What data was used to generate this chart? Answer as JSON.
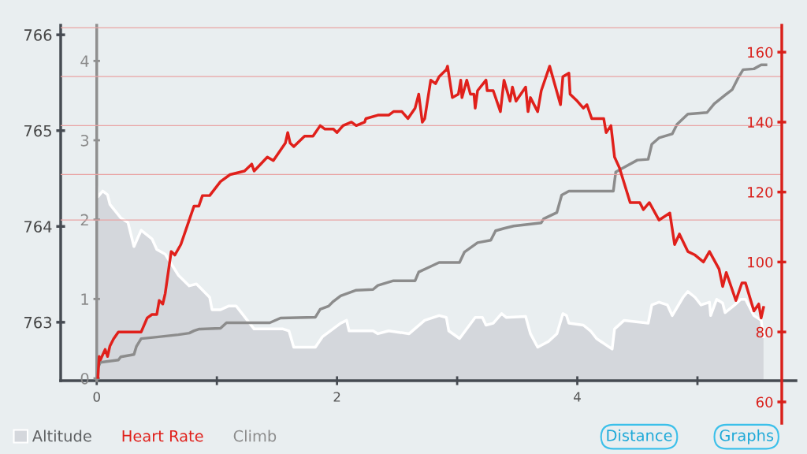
{
  "chart_data": {
    "type": "line",
    "xlim": [
      -0.3,
      5.82
    ],
    "xticks": [
      0,
      {
        "value": 1,
        "label": null
      },
      2,
      {
        "value": 3,
        "label": null
      },
      4,
      {
        "value": 5,
        "label": null
      }
    ],
    "ylim": [
      762.39,
      766.1
    ],
    "yticks": [
      763,
      764,
      765,
      766
    ],
    "y2lim": [
      53.9,
      167.7
    ],
    "y2ticks": [
      60,
      80,
      100,
      120,
      140,
      160
    ],
    "y3lim": [
      -0.03,
      4.45
    ],
    "y3ticks": [
      0,
      1,
      2,
      3,
      4
    ],
    "legend": "bottom left",
    "ref_lines": [
      {
        "axis": "y2",
        "value": 167,
        "color": "#e9a3a3"
      },
      {
        "axis": "y2",
        "value": 153,
        "color": "#e9a3a3"
      },
      {
        "axis": "y2",
        "value": 139,
        "color": "#e9a3a3"
      },
      {
        "axis": "y2",
        "value": 125,
        "color": "#e9a3a3"
      },
      {
        "axis": "y2",
        "value": 112,
        "color": "#e9a3a3"
      }
    ],
    "annotations": [
      "Distance",
      "Graphs"
    ],
    "series": [
      {
        "name": "Altitude",
        "type": "area",
        "axis": "y",
        "color": "#d4d7dc",
        "x": [
          0.0,
          0.01,
          0.05,
          0.09,
          0.11,
          0.2,
          0.26,
          0.31,
          0.37,
          0.46,
          0.5,
          0.57,
          0.68,
          0.77,
          0.83,
          0.94,
          0.96,
          1.03,
          1.1,
          1.16,
          1.31,
          1.55,
          1.6,
          1.64,
          1.82,
          1.88,
          2.03,
          2.08,
          2.1,
          2.3,
          2.34,
          2.43,
          2.6,
          2.73,
          2.85,
          2.91,
          2.93,
          3.02,
          3.15,
          3.21,
          3.24,
          3.3,
          3.37,
          3.41,
          3.57,
          3.61,
          3.67,
          3.76,
          3.83,
          3.88,
          3.91,
          3.93,
          4.05,
          4.11,
          4.16,
          4.29,
          4.31,
          4.39,
          4.59,
          4.62,
          4.68,
          4.75,
          4.79,
          4.88,
          4.92,
          4.98,
          5.03,
          5.1,
          5.11,
          5.16,
          5.21,
          5.23,
          5.31,
          5.36,
          5.4,
          5.47,
          5.53,
          5.55
        ],
        "values": [
          764.41,
          764.31,
          764.37,
          764.33,
          764.23,
          764.09,
          764.04,
          763.79,
          763.96,
          763.87,
          763.76,
          763.71,
          763.49,
          763.38,
          763.4,
          763.26,
          763.13,
          763.13,
          763.17,
          763.17,
          762.93,
          762.93,
          762.91,
          762.74,
          762.74,
          762.85,
          762.99,
          763.02,
          762.91,
          762.91,
          762.88,
          762.91,
          762.88,
          763.02,
          763.07,
          763.05,
          762.91,
          762.83,
          763.05,
          763.05,
          762.97,
          762.99,
          763.09,
          763.05,
          763.06,
          762.88,
          762.74,
          762.8,
          762.88,
          763.09,
          763.07,
          762.99,
          762.97,
          762.91,
          762.83,
          762.72,
          762.93,
          763.02,
          762.99,
          763.18,
          763.21,
          763.18,
          763.07,
          763.26,
          763.32,
          763.26,
          763.18,
          763.21,
          763.07,
          763.24,
          763.2,
          763.1,
          763.18,
          763.24,
          763.24,
          763.07,
          763.02,
          762.85
        ]
      },
      {
        "name": "Heart Rate",
        "type": "line",
        "axis": "y2",
        "color": "#e0201b",
        "x": [
          0.01,
          0.02,
          0.03,
          0.07,
          0.09,
          0.11,
          0.14,
          0.18,
          0.22,
          0.29,
          0.37,
          0.42,
          0.46,
          0.5,
          0.52,
          0.55,
          0.57,
          0.62,
          0.65,
          0.7,
          0.77,
          0.81,
          0.85,
          0.88,
          0.94,
          1.03,
          1.11,
          1.23,
          1.29,
          1.31,
          1.42,
          1.47,
          1.57,
          1.59,
          1.61,
          1.64,
          1.73,
          1.8,
          1.86,
          1.9,
          1.97,
          2.0,
          2.05,
          2.12,
          2.16,
          2.23,
          2.24,
          2.34,
          2.43,
          2.47,
          2.54,
          2.59,
          2.65,
          2.68,
          2.71,
          2.73,
          2.78,
          2.82,
          2.85,
          2.91,
          2.92,
          2.96,
          3.01,
          3.03,
          3.04,
          3.08,
          3.11,
          3.14,
          3.15,
          3.17,
          3.24,
          3.25,
          3.3,
          3.36,
          3.39,
          3.44,
          3.46,
          3.49,
          3.57,
          3.59,
          3.61,
          3.67,
          3.7,
          3.77,
          3.86,
          3.88,
          3.93,
          3.94,
          4.0,
          4.05,
          4.08,
          4.12,
          4.22,
          4.24,
          4.28,
          4.31,
          4.35,
          4.44,
          4.52,
          4.55,
          4.6,
          4.68,
          4.77,
          4.81,
          4.85,
          4.92,
          4.98,
          5.05,
          5.1,
          5.18,
          5.21,
          5.24,
          5.27,
          5.32,
          5.37,
          5.4,
          5.47,
          5.51,
          5.53,
          5.55
        ],
        "values": [
          67,
          73,
          72,
          75,
          73,
          76,
          78,
          80,
          80,
          80,
          80,
          84,
          85,
          85,
          89,
          88,
          91,
          103,
          102,
          105,
          112,
          116,
          116,
          119,
          119,
          123,
          125,
          126,
          128,
          126,
          130,
          129,
          134,
          137,
          134,
          133,
          136,
          136,
          139,
          138,
          138,
          137,
          139,
          140,
          139,
          140,
          141,
          142,
          142,
          143,
          143,
          141,
          144,
          148,
          140,
          141,
          152,
          151,
          153,
          155,
          156,
          147,
          148,
          152,
          147,
          152,
          148,
          148,
          144,
          149,
          152,
          149,
          149,
          143,
          152,
          146,
          150,
          146,
          150,
          143,
          147,
          143,
          149,
          156,
          145,
          153,
          154,
          148,
          146,
          144,
          145,
          141,
          141,
          137,
          139,
          130,
          127,
          117,
          117,
          115,
          117,
          112,
          114,
          105,
          108,
          103,
          102,
          100,
          103,
          98,
          93,
          97,
          94,
          89,
          94,
          94,
          86,
          88,
          84,
          87
        ]
      },
      {
        "name": "Climb",
        "type": "line",
        "axis": "y3",
        "color": "#8c8c8c",
        "x": [
          0.0,
          0.01,
          0.03,
          0.18,
          0.2,
          0.31,
          0.33,
          0.37,
          0.5,
          0.68,
          0.77,
          0.81,
          0.85,
          1.03,
          1.08,
          1.44,
          1.53,
          1.82,
          1.86,
          1.93,
          1.97,
          2.03,
          2.16,
          2.3,
          2.34,
          2.47,
          2.65,
          2.68,
          2.78,
          2.85,
          3.02,
          3.06,
          3.17,
          3.28,
          3.32,
          3.39,
          3.47,
          3.7,
          3.72,
          3.83,
          3.87,
          3.93,
          4.3,
          4.32,
          4.39,
          4.5,
          4.59,
          4.62,
          4.68,
          4.79,
          4.83,
          4.92,
          5.08,
          5.14,
          5.23,
          5.29,
          5.34,
          5.38,
          5.47,
          5.53,
          5.57
        ],
        "values": [
          0.0,
          0.13,
          0.2,
          0.23,
          0.27,
          0.3,
          0.4,
          0.5,
          0.52,
          0.55,
          0.57,
          0.6,
          0.62,
          0.63,
          0.7,
          0.7,
          0.76,
          0.77,
          0.87,
          0.91,
          0.97,
          1.04,
          1.11,
          1.12,
          1.17,
          1.23,
          1.23,
          1.34,
          1.41,
          1.46,
          1.46,
          1.59,
          1.71,
          1.74,
          1.86,
          1.89,
          1.92,
          1.96,
          2.01,
          2.09,
          2.31,
          2.36,
          2.36,
          2.6,
          2.66,
          2.75,
          2.76,
          2.95,
          3.03,
          3.08,
          3.2,
          3.33,
          3.35,
          3.46,
          3.57,
          3.64,
          3.79,
          3.89,
          3.9,
          3.95,
          3.95
        ]
      }
    ]
  }
}
